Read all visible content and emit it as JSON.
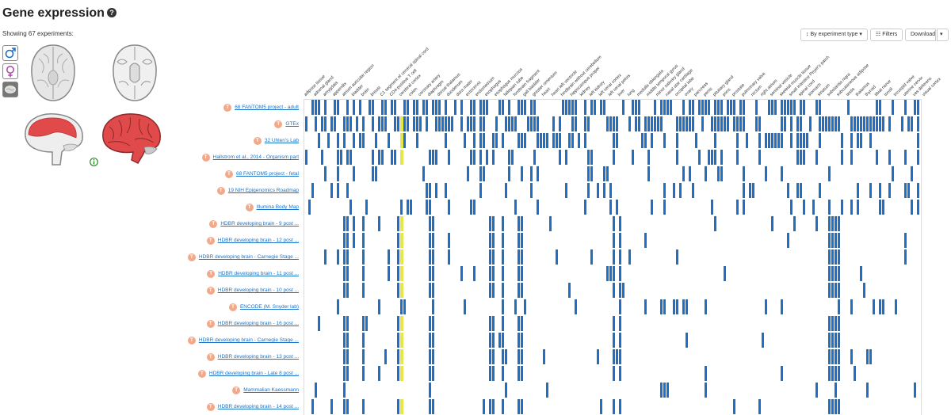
{
  "header": {
    "title": "Gene expression",
    "help_icon": "?"
  },
  "showing_text": "Showing 67 experiments:",
  "toolbar": {
    "sort_label": "By experiment type",
    "filters_label": "Filters",
    "download_label": "Download"
  },
  "anatomogram": {
    "selectors": [
      {
        "name": "male-icon"
      },
      {
        "name": "female-icon"
      },
      {
        "name": "brain-icon"
      }
    ]
  },
  "colors": {
    "expressed": "#1f6fc6",
    "highlight": "#e6e84a",
    "badge": "#f2a98a",
    "link": "#1a73c9",
    "tissue_red": "#e04a4a"
  },
  "columns": [
    "adipose tissue",
    "adrenal gland",
    "amygdala",
    "appendix",
    "atrium auricular region",
    "bladder",
    "brain",
    "breast",
    "C1 segment of cervical spinal cord",
    "CD4-positive T cell",
    "cerebral cortex",
    "colon",
    "coronary artery",
    "diaphragm",
    "dorsal thalamus",
    "duodenum",
    "dura mater",
    "ectocervix",
    "endometrium",
    "esophagus",
    "esophagus mucosa",
    "fallopian tube",
    "forebrain fragment",
    "gall bladder",
    "greater omentum",
    "heart",
    "heart left ventricle",
    "hindbrain without cerebellum",
    "hippocampus proper",
    "kidney",
    "left kidney",
    "left renal cortex",
    "left renal pelvis",
    "liver",
    "lung",
    "medulla oblongata",
    "middle temporal gyrus",
    "minor salivary gland",
    "nasal alar cartilage",
    "occipital lobe",
    "ovary",
    "pancreas",
    "penis",
    "pituitary gland",
    "pons",
    "prostate",
    "pulmonary valve",
    "rectum",
    "right atrium",
    "seminal vesicle",
    "skeletal muscle tissue",
    "small intestine Peyer's patch",
    "spinal cord",
    "stomach",
    "striatum",
    "substantia nigra",
    "subcutaneous adipose",
    "testis",
    "thalamus",
    "thyroid",
    "tibial nerve",
    "tonsil",
    "tricuspid valve",
    "uterine cervix",
    "vas deferens",
    "visual cortex"
  ],
  "experiments": [
    {
      "label": "68 FANTOM5 project - adult",
      "badge": "T"
    },
    {
      "label": "GTEx",
      "badge": "T"
    },
    {
      "label": "32 Uhlen's Lab",
      "badge": "T"
    },
    {
      "label": "Hallstrom et al., 2014 - Organism part",
      "badge": "T"
    },
    {
      "label": "68 FANTOM5 project - fetal",
      "badge": "T"
    },
    {
      "label": "19 NIH Epigenomics Roadmap",
      "badge": "T"
    },
    {
      "label": "Illumina Body Map",
      "badge": "T"
    },
    {
      "label": "HDBR developing brain - 9 post ...",
      "badge": "T"
    },
    {
      "label": "HDBR developing brain - 12 post ...",
      "badge": "T"
    },
    {
      "label": "HDBR developing brain - Carnegie Stage ...",
      "badge": "T"
    },
    {
      "label": "HDBR developing brain - 11 post ...",
      "badge": "T"
    },
    {
      "label": "HDBR developing brain - 10 post ...",
      "badge": "T"
    },
    {
      "label": "ENCODE (M. Snyder lab)",
      "badge": "T"
    },
    {
      "label": "HDBR developing brain - 16 post ...",
      "badge": "T"
    },
    {
      "label": "HDBR developing brain - Carnegie Stage ...",
      "badge": "T"
    },
    {
      "label": "HDBR developing brain - 13 post ...",
      "badge": "T"
    },
    {
      "label": "HDBR developing brain - Late 8 post ...",
      "badge": "T"
    },
    {
      "label": "Mammalian Kaessmann",
      "badge": "T"
    },
    {
      "label": "HDBR developing brain - 14 post ...",
      "badge": "T"
    }
  ]
}
